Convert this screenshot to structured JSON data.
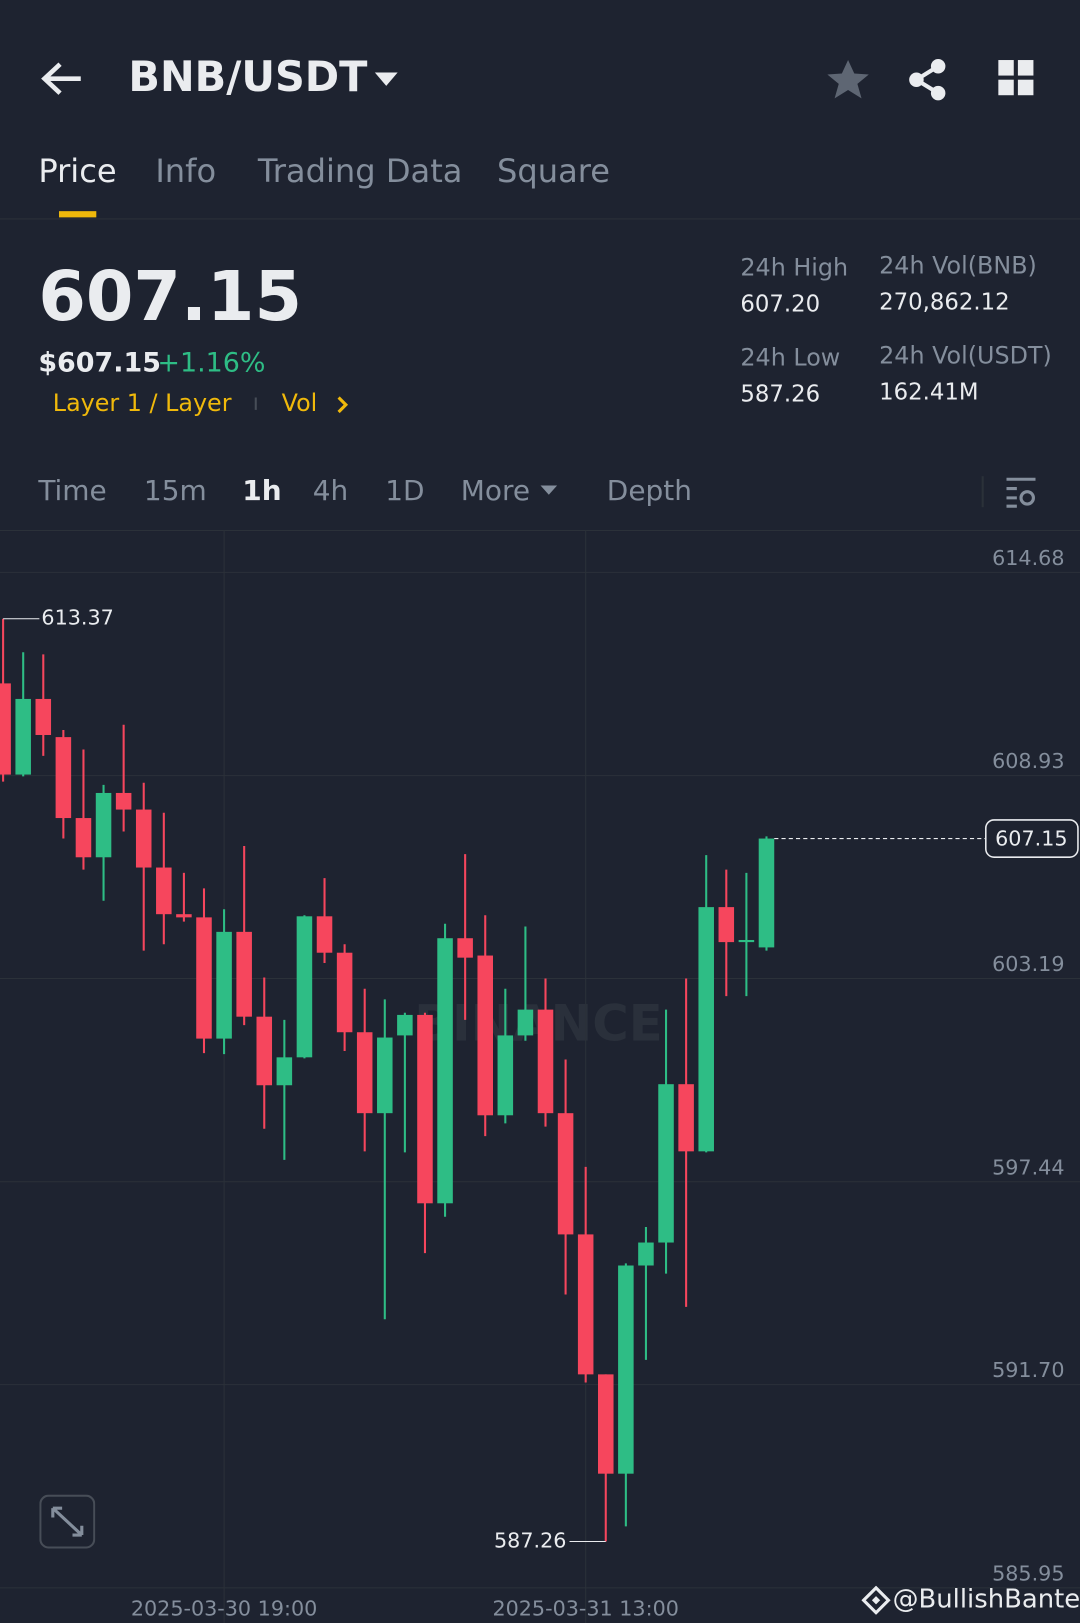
{
  "header": {
    "pair": "BNB/USDT"
  },
  "tabs": [
    "Price",
    "Info",
    "Trading Data",
    "Square"
  ],
  "summary": {
    "price": "607.15",
    "usd_price": "$607.15",
    "change": "+1.16%",
    "tag": "Layer 1 / Layer",
    "tag2": "Vol"
  },
  "stats": [
    {
      "label": "24h High",
      "value": "607.20"
    },
    {
      "label": "24h Vol(BNB)",
      "value": "270,862.12"
    },
    {
      "label": "24h Low",
      "value": "587.26"
    },
    {
      "label": "24h Vol(USDT)",
      "value": "162.41M"
    }
  ],
  "intervals": [
    "Time",
    "15m",
    "1h",
    "4h",
    "1D",
    "More",
    "Depth"
  ],
  "watermark": "BINANCE",
  "credit": "@BullishBanter",
  "chart_data": {
    "type": "candlestick",
    "x": [
      "2025-03-30 08:00",
      "2025-03-30 09:00",
      "2025-03-30 10:00",
      "2025-03-30 11:00",
      "2025-03-30 12:00",
      "2025-03-30 13:00",
      "2025-03-30 14:00",
      "2025-03-30 15:00",
      "2025-03-30 16:00",
      "2025-03-30 17:00",
      "2025-03-30 18:00",
      "2025-03-30 19:00",
      "2025-03-30 20:00",
      "2025-03-30 21:00",
      "2025-03-30 22:00",
      "2025-03-30 23:00",
      "2025-03-31 00:00",
      "2025-03-31 01:00",
      "2025-03-31 02:00",
      "2025-03-31 03:00",
      "2025-03-31 04:00",
      "2025-03-31 05:00",
      "2025-03-31 06:00",
      "2025-03-31 07:00",
      "2025-03-31 08:00",
      "2025-03-31 09:00",
      "2025-03-31 10:00",
      "2025-03-31 11:00",
      "2025-03-31 12:00",
      "2025-03-31 13:00",
      "2025-03-31 14:00",
      "2025-03-31 15:00",
      "2025-03-31 16:00",
      "2025-03-31 17:00",
      "2025-03-31 18:00",
      "2025-03-31 19:00",
      "2025-03-31 20:00",
      "2025-03-31 21:00",
      "2025-03-31 22:00"
    ],
    "open": [
      611.54,
      608.96,
      611.1,
      610.02,
      607.73,
      606.62,
      608.44,
      607.97,
      606.33,
      605.01,
      604.92,
      601.49,
      604.51,
      602.11,
      600.17,
      600.96,
      604.95,
      603.92,
      601.67,
      599.38,
      601.58,
      602.16,
      596.83,
      604.33,
      603.84,
      599.32,
      601.58,
      602.31,
      599.38,
      595.95,
      591.99,
      589.18,
      595.07,
      595.72,
      600.2,
      598.3,
      605.21,
      604.22,
      604.07
    ],
    "high": [
      613.37,
      612.42,
      612.36,
      610.22,
      609.67,
      608.67,
      610.37,
      608.73,
      607.88,
      606.18,
      605.74,
      605.15,
      606.94,
      603.22,
      602.02,
      604.98,
      606.03,
      604.16,
      602.9,
      602.6,
      602.22,
      602.22,
      604.74,
      606.71,
      604.98,
      602.9,
      604.66,
      603.19,
      600.9,
      597.86,
      591.99,
      595.13,
      596.16,
      602.31,
      603.19,
      606.68,
      606.27,
      606.18,
      607.21
    ],
    "low": [
      608.76,
      608.91,
      609.49,
      607.15,
      606.27,
      605.39,
      607.35,
      603.98,
      604.16,
      604.8,
      601.08,
      601.05,
      601.87,
      598.94,
      598.06,
      600.93,
      603.63,
      601.14,
      598.3,
      593.55,
      598.27,
      595.42,
      596.45,
      602.02,
      598.73,
      599.09,
      601.43,
      599.0,
      594.25,
      591.76,
      587.26,
      587.69,
      592.4,
      594.84,
      593.9,
      598.27,
      602.69,
      602.69,
      603.98
    ],
    "close": [
      608.96,
      611.1,
      610.08,
      607.73,
      606.62,
      608.44,
      607.97,
      606.33,
      605.01,
      604.92,
      601.49,
      604.51,
      602.11,
      600.17,
      600.96,
      604.95,
      603.92,
      601.67,
      599.38,
      601.52,
      602.16,
      596.83,
      604.33,
      603.78,
      599.32,
      601.58,
      602.31,
      599.38,
      595.95,
      591.99,
      589.18,
      595.07,
      595.72,
      600.2,
      598.3,
      605.21,
      604.22,
      604.28,
      607.15
    ],
    "up_color": "#2ebd85",
    "down_color": "#f6465d",
    "ylim": [
      585.95,
      614.68
    ],
    "yticks": [
      614.68,
      608.93,
      603.19,
      597.44,
      {
        "value": 591.7,
        "label": "591.70"
      },
      585.95
    ],
    "xticks": [
      "2025-03-30 19:00",
      "2025-03-31 13:00"
    ],
    "grid": true
  }
}
